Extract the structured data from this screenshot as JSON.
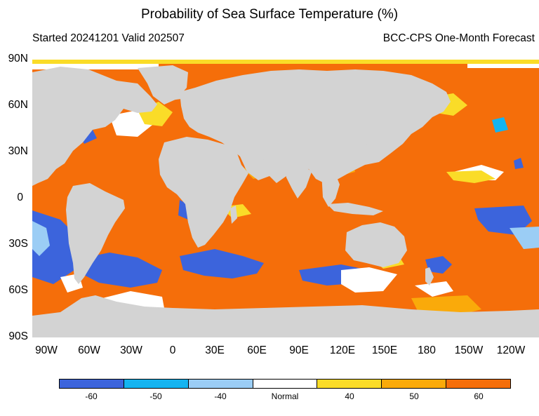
{
  "title": "Probability of Sea Surface Temperature (%)",
  "subtitle_left": "Started 20241201  Valid 202507",
  "subtitle_right": "BCC-CPS One-Month Forecast",
  "map": {
    "y_axis_labels": [
      "90N",
      "60N",
      "30N",
      "0",
      "30S",
      "60S",
      "90S"
    ],
    "x_axis_labels": [
      "90W",
      "60W",
      "30W",
      "0",
      "30E",
      "60E",
      "90E",
      "120E",
      "150E",
      "180",
      "150W",
      "120W"
    ],
    "land_color": "#d3d3d3",
    "ocean_dominant_color": "#f56e0a"
  },
  "legend": {
    "categories": [
      "-60",
      "-50",
      "-40",
      "Normal",
      "40",
      "50",
      "60"
    ],
    "colors": [
      "#3c64dc",
      "#14b4f0",
      "#9bcdf5",
      "#ffffff",
      "#fadc28",
      "#faaa0a",
      "#f56e0a"
    ]
  }
}
